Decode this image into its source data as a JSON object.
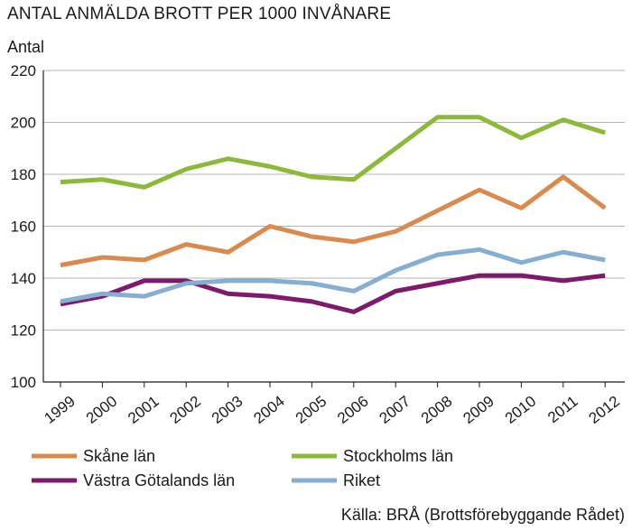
{
  "chart_data": {
    "type": "line",
    "title": "ANTAL ANMÄLDA BROTT PER 1000 INVÅNARE",
    "ylabel": "Antal",
    "xlabel": "",
    "ylim": [
      100,
      220
    ],
    "yticks": [
      100,
      120,
      140,
      160,
      180,
      200,
      220
    ],
    "grid": "horizontal",
    "legend_position": "bottom",
    "categories": [
      "1999",
      "2000",
      "2001",
      "2002",
      "2003",
      "2004",
      "2005",
      "2006",
      "2007",
      "2008",
      "2009",
      "2010",
      "2011",
      "2012"
    ],
    "series": [
      {
        "name": "Skåne län",
        "color": "#d98a4e",
        "values": [
          145,
          148,
          147,
          153,
          150,
          160,
          156,
          154,
          158,
          166,
          174,
          167,
          179,
          167
        ]
      },
      {
        "name": "Stockholms län",
        "color": "#8db83a",
        "values": [
          177,
          178,
          175,
          182,
          186,
          183,
          179,
          178,
          190,
          202,
          202,
          194,
          201,
          196
        ]
      },
      {
        "name": "Västra Götalands län",
        "color": "#7d1a6a",
        "values": [
          130,
          133,
          139,
          139,
          134,
          133,
          131,
          127,
          135,
          138,
          141,
          141,
          139,
          141
        ]
      },
      {
        "name": "Riket",
        "color": "#86aed0",
        "values": [
          131,
          134,
          133,
          138,
          139,
          139,
          138,
          135,
          143,
          149,
          151,
          146,
          150,
          147
        ]
      }
    ]
  },
  "source": "Källa: BRÅ (Brottsförebyggande Rådet)"
}
